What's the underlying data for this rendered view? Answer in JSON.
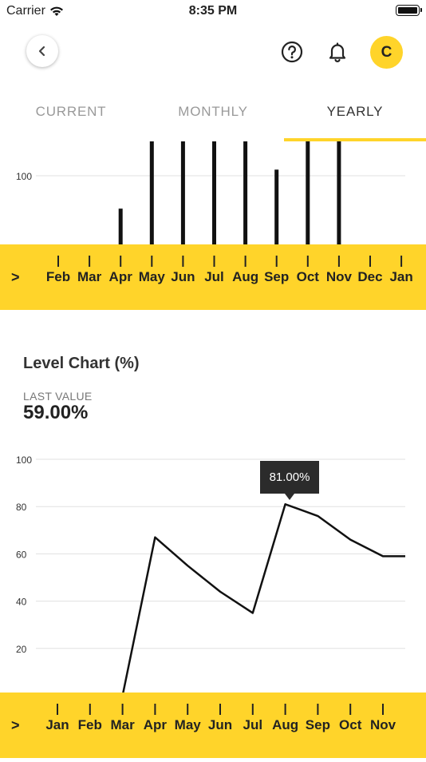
{
  "status_bar": {
    "carrier": "Carrier",
    "time": "8:35 PM"
  },
  "header": {
    "avatar_initial": "C"
  },
  "tabs": [
    {
      "label": "CURRENT",
      "active": false
    },
    {
      "label": "MONTHLY",
      "active": false
    },
    {
      "label": "YEARLY",
      "active": true
    }
  ],
  "level": {
    "title": "Level Chart (%)",
    "last_label": "LAST VALUE",
    "last_value": "59.00%",
    "tooltip": "81.00%"
  },
  "colors": {
    "accent": "#FFD42A",
    "tooltip_bg": "#2b2b2b"
  },
  "chart_data": [
    {
      "type": "bar",
      "title": "",
      "categories": [
        "Feb",
        "Mar",
        "Apr",
        "May",
        "Jun",
        "Jul",
        "Aug",
        "Sep",
        "Oct",
        "Nov",
        "Dec",
        "Jan"
      ],
      "values": [
        0,
        0,
        73,
        130,
        130,
        130,
        130,
        105,
        130,
        130,
        0,
        0
      ],
      "yticks": [
        100
      ],
      "ylim_visible": [
        43,
        120
      ],
      "grid": true
    },
    {
      "type": "line",
      "title": "Level Chart (%)",
      "categories": [
        "Jan",
        "Feb",
        "Mar",
        "Apr",
        "May",
        "Jun",
        "Jul",
        "Aug",
        "Sep",
        "Oct",
        "Nov"
      ],
      "values": [
        null,
        null,
        0,
        67,
        55,
        44,
        35,
        81,
        76,
        66,
        59
      ],
      "trailing_value": 59,
      "yticks": [
        100,
        80,
        60,
        40,
        20
      ],
      "ylim": [
        0,
        100
      ],
      "grid": true,
      "highlight": {
        "category": "Aug",
        "value": 81,
        "label": "81.00%"
      }
    }
  ]
}
